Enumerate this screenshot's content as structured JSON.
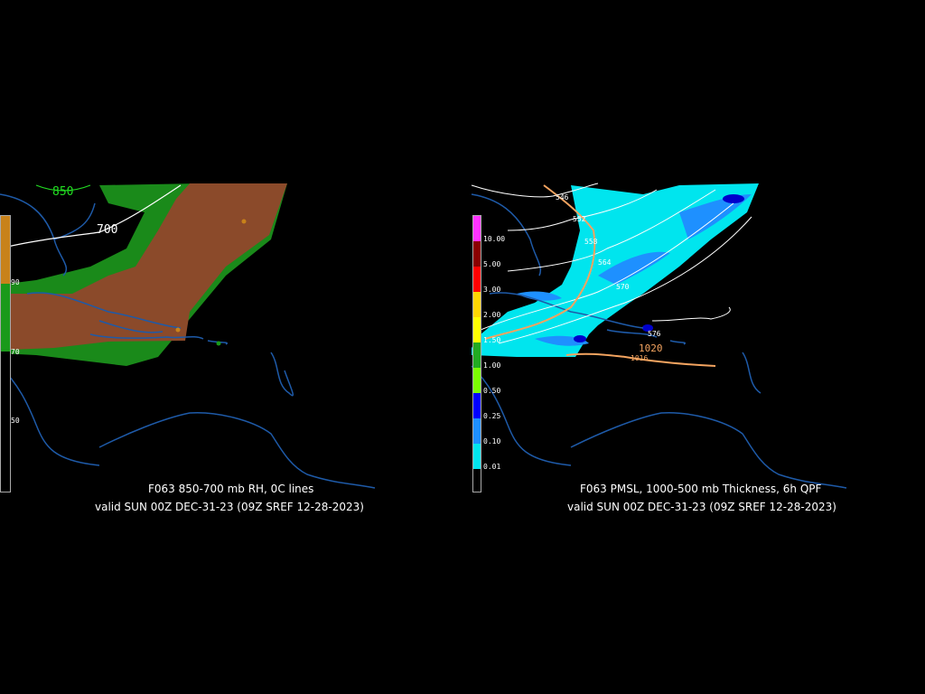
{
  "left_panel": {
    "title": "F063 850-700 mb RH, 0C lines",
    "valid": "valid SUN 00Z DEC-31-23 (09Z SREF 12-28-2023)",
    "contour_labels": [
      "850",
      "700"
    ],
    "legend_labels": [
      "90",
      "70",
      "50"
    ],
    "colors": {
      "rh_high": "#8b4a2a",
      "rh_mid": "#1a8a1a",
      "legend_tan": "#c8821a",
      "legend_green": "#1a9a1a",
      "coast": "#1e5aa8",
      "label_850": "#22dd22"
    }
  },
  "right_panel": {
    "title": "F063 PMSL, 1000-500 mb Thickness, 6h QPF",
    "valid": "valid SUN 00Z DEC-31-23 (09Z SREF 12-28-2023)",
    "thickness_labels": [
      "546",
      "552",
      "558",
      "564",
      "570",
      "576"
    ],
    "pressure_labels": [
      "1020",
      "1016"
    ],
    "legend": [
      {
        "label": "10.00",
        "color": "#ff33ff"
      },
      {
        "label": "5.00",
        "color": "#8b0000"
      },
      {
        "label": "3.00",
        "color": "#ff0000"
      },
      {
        "label": "2.00",
        "color": "#ffd700"
      },
      {
        "label": "1.50",
        "color": "#ffff00"
      },
      {
        "label": "1.00",
        "color": "#22aa22"
      },
      {
        "label": "0.50",
        "color": "#7cfc00"
      },
      {
        "label": "0.25",
        "color": "#0000ff"
      },
      {
        "label": "0.10",
        "color": "#1e90ff"
      },
      {
        "label": "0.01",
        "color": "#00e5ee"
      }
    ],
    "colors": {
      "qpf_light": "#00e5ee",
      "qpf_mid": "#1e90ff",
      "qpf_heavy": "#0000cc",
      "isobar": "#f4a460",
      "coast": "#1e5aa8"
    }
  }
}
